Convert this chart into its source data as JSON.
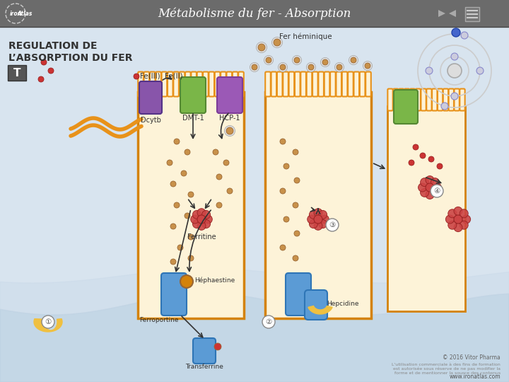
{
  "title": "Métabolisme du fer - Absorption",
  "header_bg": "#6b6b6b",
  "header_text_color": "#ffffff",
  "body_bg": "#d8e4ef",
  "cell_fill": "#fdf3d8",
  "cell_border": "#d4820a",
  "membrane_color": "#e8921a",
  "labels": {
    "fer_heminique": "Fer héminique",
    "fe2": "Fe(II)",
    "fe3": "Fe(III)",
    "dcytb": "Dcytb",
    "dmt1": "DMT-1",
    "hcp1": "HCP-1",
    "ferritine": "Ferritine",
    "hephaestine": "Héphaestine",
    "ferroportine": "Ferroportine",
    "hepcidine": "Hepcidine",
    "transferrine": "Transferrine",
    "copyright": "© 2016 Vitor Pharma",
    "ironatlas": "ironAtlas",
    "website": "www.ironatlas.com",
    "reg1": "REGULATION DE",
    "reg2": "L’ABSORPTION DU FER"
  },
  "iron_dot_color": "#c8914a",
  "green_transporter": "#7ab648",
  "purple_transporter": "#9b59b6",
  "dcytb_color": "#8855aa",
  "blue_protein": "#5b9bd5",
  "orange_dot": "#e8921a",
  "yellow_crescent": "#f0c040",
  "figsize": [
    7.2,
    5.4
  ],
  "dpi": 100
}
